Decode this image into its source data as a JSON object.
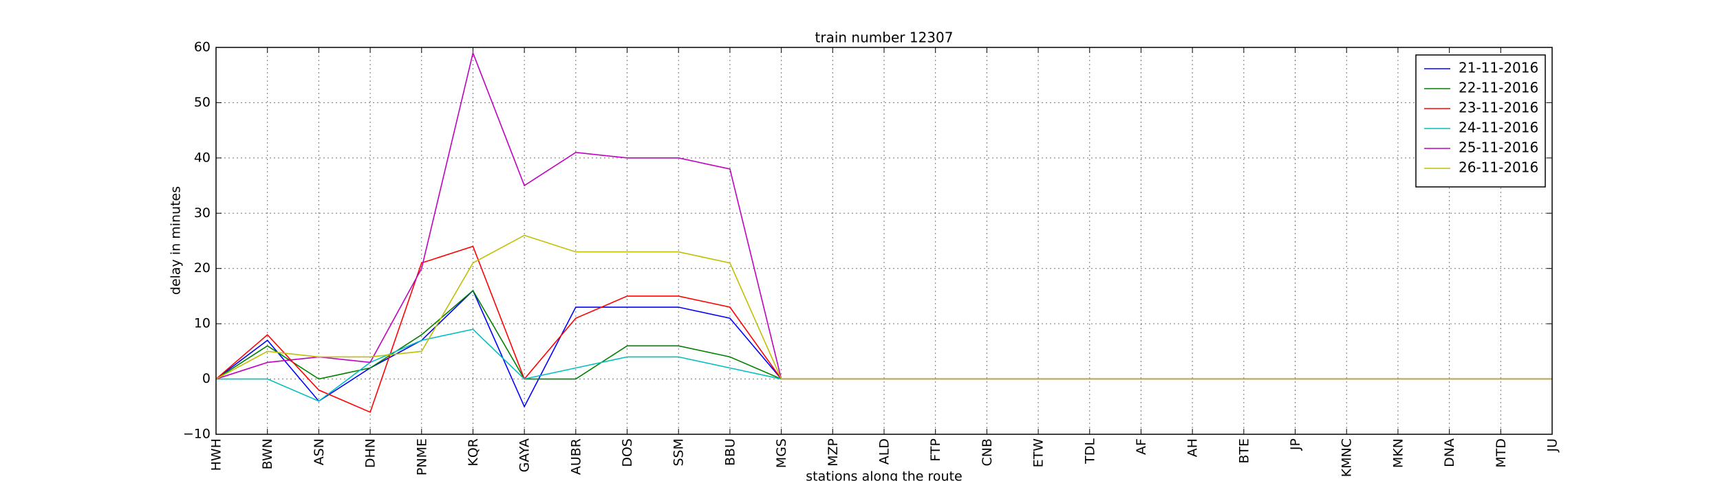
{
  "chart_data": {
    "type": "line",
    "title": "train number 12307",
    "xlabel": "stations along the route",
    "ylabel": "delay in minutes",
    "categories": [
      "HWH",
      "BWN",
      "ASN",
      "DHN",
      "PNME",
      "KQR",
      "GAYA",
      "AUBR",
      "DOS",
      "SSM",
      "BBU",
      "MGS",
      "MZP",
      "ALD",
      "FTP",
      "CNB",
      "ETW",
      "TDL",
      "AF",
      "AH",
      "BTE",
      "JP",
      "KMNC",
      "MKN",
      "DNA",
      "MTD",
      "JU"
    ],
    "series": [
      {
        "name": "21-11-2016",
        "color": "#0000ff",
        "values": [
          0,
          7,
          -4,
          2,
          7,
          16,
          -5,
          13,
          13,
          13,
          11,
          0,
          0,
          0,
          0,
          0,
          0,
          0,
          0,
          0,
          0,
          0,
          0,
          0,
          0,
          0,
          0
        ]
      },
      {
        "name": "22-11-2016",
        "color": "#008000",
        "values": [
          0,
          6,
          0,
          2,
          8,
          16,
          0,
          0,
          6,
          6,
          4,
          0,
          0,
          0,
          0,
          0,
          0,
          0,
          0,
          0,
          0,
          0,
          0,
          0,
          0,
          0,
          0
        ]
      },
      {
        "name": "23-11-2016",
        "color": "#ff0000",
        "values": [
          0,
          8,
          -2,
          -6,
          21,
          24,
          0,
          11,
          15,
          15,
          13,
          0,
          0,
          0,
          0,
          0,
          0,
          0,
          0,
          0,
          0,
          0,
          0,
          0,
          0,
          0,
          0
        ]
      },
      {
        "name": "24-11-2016",
        "color": "#00bfbf",
        "values": [
          0,
          0,
          -4,
          3,
          7,
          9,
          0,
          2,
          4,
          4,
          2,
          0,
          0,
          0,
          0,
          0,
          0,
          0,
          0,
          0,
          0,
          0,
          0,
          0,
          0,
          0,
          0
        ]
      },
      {
        "name": "25-11-2016",
        "color": "#bf00bf",
        "values": [
          0,
          3,
          4,
          3,
          20,
          59,
          35,
          41,
          40,
          40,
          38,
          0,
          0,
          0,
          0,
          0,
          0,
          0,
          0,
          0,
          0,
          0,
          0,
          0,
          0,
          0,
          0
        ]
      },
      {
        "name": "26-11-2016",
        "color": "#bfbf00",
        "values": [
          0,
          5,
          4,
          4,
          5,
          21,
          26,
          23,
          23,
          23,
          21,
          0,
          0,
          0,
          0,
          0,
          0,
          0,
          0,
          0,
          0,
          0,
          0,
          0,
          0,
          0,
          0
        ]
      }
    ],
    "ylim": [
      -10,
      60
    ],
    "yticks": [
      {
        "value": -10,
        "label": "−10"
      },
      0,
      10,
      20,
      30,
      40,
      50,
      60
    ],
    "grid": true,
    "legend": "upper right"
  }
}
